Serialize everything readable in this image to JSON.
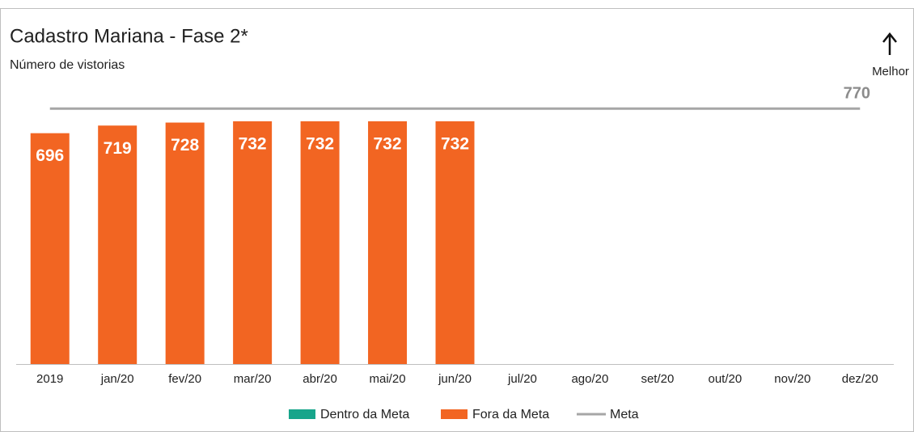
{
  "chart_data": {
    "type": "bar",
    "title": "Cadastro Mariana - Fase 2*",
    "subtitle": "Número de vistorias",
    "annotation": "Melhor",
    "categories": [
      "2019",
      "jan/20",
      "fev/20",
      "mar/20",
      "abr/20",
      "mai/20",
      "jun/20",
      "jul/20",
      "ago/20",
      "set/20",
      "out/20",
      "nov/20",
      "dez/20"
    ],
    "series": [
      {
        "name": "Dentro da Meta",
        "color": "#17a58b",
        "values": [
          null,
          null,
          null,
          null,
          null,
          null,
          null,
          null,
          null,
          null,
          null,
          null,
          null
        ]
      },
      {
        "name": "Fora da Meta",
        "color": "#f26522",
        "values": [
          696,
          719,
          728,
          732,
          732,
          732,
          732,
          null,
          null,
          null,
          null,
          null,
          null
        ]
      },
      {
        "name": "Meta",
        "type": "line",
        "color": "#a6a6a6",
        "values": [
          770,
          770,
          770,
          770,
          770,
          770,
          770,
          770,
          770,
          770,
          770,
          770,
          770
        ]
      }
    ],
    "ylim": [
      0,
      800
    ],
    "legend": "bottom"
  }
}
